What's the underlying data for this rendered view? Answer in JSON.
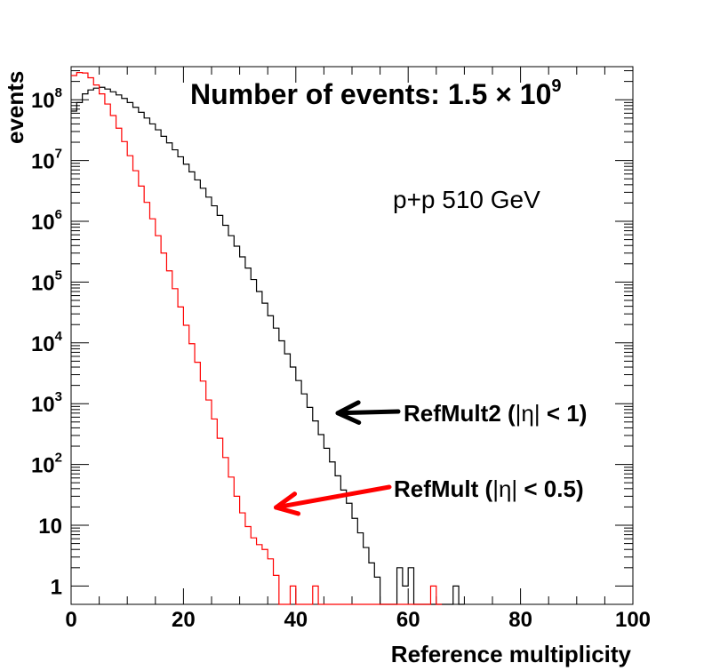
{
  "chart_data": {
    "type": "histogram",
    "title": "Number of events: 1.5 × 10^9",
    "title_parts": {
      "text": "Number of events: 1.5",
      "times": "×",
      "base": "10",
      "exp": "9"
    },
    "subtitle": "p+p 510 GeV",
    "xlabel": "Reference multiplicity",
    "ylabel": "events",
    "xlim": [
      0,
      100
    ],
    "ylim": [
      0.5,
      350000000
    ],
    "yscale": "log",
    "x_ticks": [
      0,
      20,
      40,
      60,
      80,
      100
    ],
    "y_ticks": [
      {
        "value": 1,
        "base": "1",
        "exp": ""
      },
      {
        "value": 10,
        "base": "10",
        "exp": ""
      },
      {
        "value": 100,
        "base": "10",
        "exp": "2"
      },
      {
        "value": 1000,
        "base": "10",
        "exp": "3"
      },
      {
        "value": 10000,
        "base": "10",
        "exp": "4"
      },
      {
        "value": 100000,
        "base": "10",
        "exp": "5"
      },
      {
        "value": 1000000,
        "base": "10",
        "exp": "6"
      },
      {
        "value": 10000000,
        "base": "10",
        "exp": "7"
      },
      {
        "value": 100000000,
        "base": "10",
        "exp": "8"
      }
    ],
    "grid": false,
    "series": [
      {
        "name": "RefMult2 (|η| < 1)",
        "color": "#000000",
        "bin_width": 1,
        "values": [
          65000000.0,
          90000000.0,
          125000000.0,
          145000000.0,
          155000000.0,
          160000000.0,
          150000000.0,
          135000000.0,
          120000000.0,
          105000000.0,
          90000000.0,
          75000000.0,
          62000000.0,
          50000000.0,
          40000000.0,
          32000000.0,
          25000000.0,
          19500000.0,
          15000000.0,
          11500000.0,
          8700000.0,
          6500000.0,
          4800000.0,
          3500000.0,
          2500000.0,
          1800000.0,
          1250000.0,
          860000.0,
          580000.0,
          390000.0,
          260000.0,
          170000.0,
          110000.0,
          70000.0,
          45000.0,
          28000.0,
          17500.0,
          10800.0,
          6600.0,
          4000.0,
          2400.0,
          1450.0,
          870,
          520,
          310,
          185,
          110,
          65,
          38,
          23,
          13,
          7.5,
          4.3,
          2.4,
          1.4,
          0,
          0,
          0,
          2,
          1,
          2,
          0,
          0,
          0,
          0,
          0,
          0,
          0,
          1,
          0
        ]
      },
      {
        "name": "RefMult (|η| < 0.5)",
        "color": "#ff0000",
        "bin_width": 1,
        "values": [
          250000000.0,
          280000000.0,
          275000000.0,
          230000000.0,
          175000000.0,
          125000000.0,
          85000000.0,
          55000000.0,
          34000000.0,
          20500000.0,
          12000000.0,
          6800000.0,
          3800000.0,
          2050000.0,
          1100000.0,
          580000.0,
          300000.0,
          153000.0,
          78000.0,
          39000.0,
          19500.0,
          9700.0,
          4800.0,
          2350.0,
          1150.0,
          560,
          270,
          130,
          62,
          30,
          16,
          9.5,
          6.2,
          4.8,
          4,
          2.8,
          1.5,
          0,
          0,
          1,
          0,
          0,
          0,
          1,
          0,
          0,
          0,
          0,
          0,
          0,
          0,
          0,
          0,
          0,
          0,
          0,
          0,
          0,
          0,
          0,
          0,
          0,
          0,
          0,
          1,
          0
        ]
      }
    ],
    "annotations": [
      {
        "text": "RefMult2 (|η| < 1)",
        "label_main": "RefMult2 (",
        "label_eta": "|η|",
        "label_rest": " < 1)",
        "color": "#000000",
        "arrow_to": {
          "x": 47,
          "y": 700
        }
      },
      {
        "text": "RefMult (|η| < 0.5)",
        "label_main": "RefMult (",
        "label_eta": "|η|",
        "label_rest": " < 0.5)",
        "color": "#ff0000",
        "arrow_to": {
          "x": 36,
          "y": 21
        }
      }
    ]
  }
}
